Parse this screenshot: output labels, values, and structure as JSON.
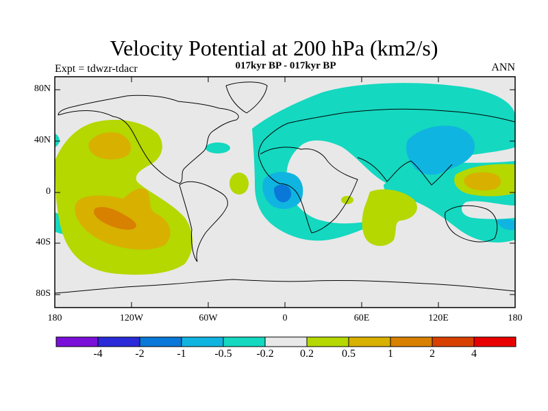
{
  "title": "Velocity Potential at 200 hPa (km2/s)",
  "subtitle": "017kyr BP - 017kyr BP",
  "experiment": "Expt = tdwzr-tdacr",
  "period": "ANN",
  "lat_labels": [
    "80N",
    "40N",
    "0",
    "40S",
    "80S"
  ],
  "lon_labels": [
    "180",
    "120W",
    "60W",
    "0",
    "60E",
    "120E",
    "180"
  ],
  "colorbar": {
    "colors": [
      "#7a10d8",
      "#2a2ad8",
      "#0a78d8",
      "#10b4e0",
      "#14d8c0",
      "#e8e8e8",
      "#b4d800",
      "#d8b000",
      "#d88000",
      "#d84000",
      "#e80000"
    ],
    "labels": [
      "-4",
      "-2",
      "-1",
      "-0.5",
      "-0.2",
      "0.2",
      "0.5",
      "1",
      "2",
      "4"
    ]
  },
  "colors": {
    "background_field": "#e8e8e8",
    "coast": "#000000"
  }
}
